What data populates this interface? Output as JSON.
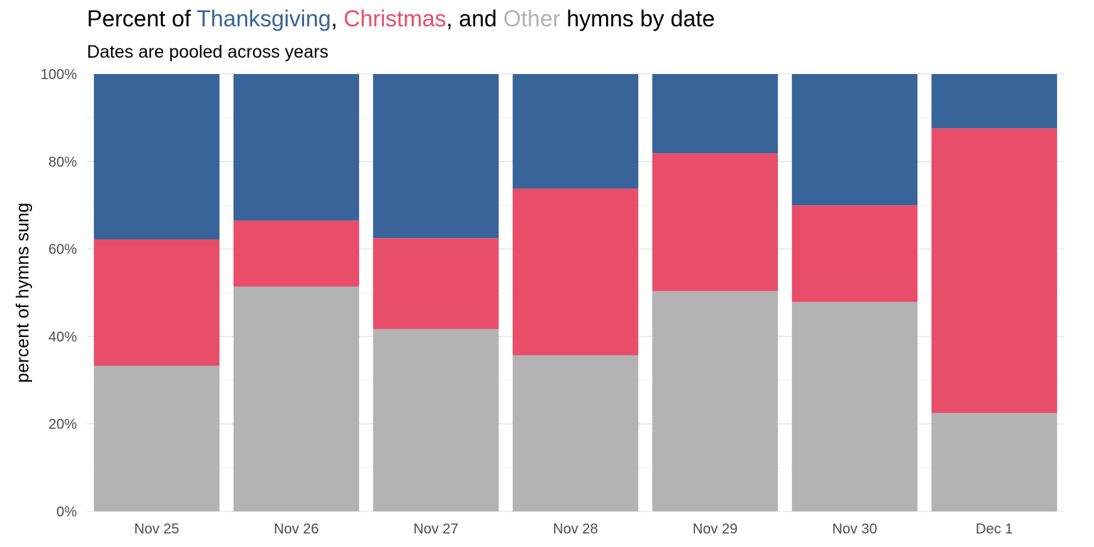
{
  "chart_data": {
    "type": "bar",
    "stacked": true,
    "orientation": "vertical",
    "title_parts": [
      {
        "text": "Percent of ",
        "color": "#000000"
      },
      {
        "text": "Thanksgiving",
        "color": "#386499"
      },
      {
        "text": ", ",
        "color": "#000000"
      },
      {
        "text": "Christmas",
        "color": "#e84e69"
      },
      {
        "text": ", and ",
        "color": "#000000"
      },
      {
        "text": "Other",
        "color": "#b3b3b3"
      },
      {
        "text": " hymns by date",
        "color": "#000000"
      }
    ],
    "subtitle": "Dates are pooled across years",
    "xlabel": "",
    "ylabel": "percent of hymns sung",
    "ylim": [
      0,
      100
    ],
    "yticks": [
      0,
      20,
      40,
      60,
      80,
      100
    ],
    "ytick_labels": [
      "0%",
      "20%",
      "40%",
      "60%",
      "80%",
      "100%"
    ],
    "grid": true,
    "legend": "none (colored words in title)",
    "categories": [
      "Nov 25",
      "Nov 26",
      "Nov 27",
      "Nov 28",
      "Nov 29",
      "Nov 30",
      "Dec 1"
    ],
    "series": [
      {
        "key": "other",
        "color": "#b3b3b3",
        "values": [
          33.3,
          51.4,
          41.7,
          35.7,
          50.4,
          47.9,
          22.5
        ]
      },
      {
        "key": "christmas",
        "color": "#e84e69",
        "values": [
          28.9,
          15.1,
          20.8,
          38.1,
          31.5,
          22.1,
          65.1
        ]
      },
      {
        "key": "thanksgiving",
        "color": "#386499",
        "values": [
          37.8,
          33.5,
          37.5,
          26.2,
          18.1,
          30.0,
          12.4
        ]
      }
    ]
  }
}
